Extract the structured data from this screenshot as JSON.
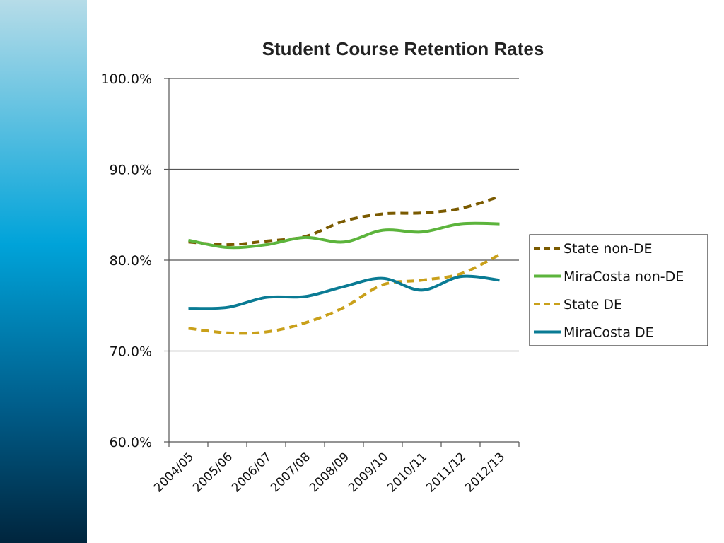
{
  "chart_data": {
    "type": "line",
    "title": "Student Course Retention Rates",
    "xlabel": "",
    "ylabel": "",
    "ylim": [
      60,
      100
    ],
    "y_ticks": [
      "60.0%",
      "70.0%",
      "80.0%",
      "90.0%",
      "100.0%"
    ],
    "y_tick_values": [
      60,
      70,
      80,
      90,
      100
    ],
    "categories": [
      "2004/05",
      "2005/06",
      "2006/07",
      "2007/08",
      "2008/09",
      "2009/10",
      "2010/11",
      "2011/12",
      "2012/13"
    ],
    "grid": true,
    "legend_position": "right",
    "series": [
      {
        "name": "State non-DE",
        "values": [
          82.0,
          81.7,
          82.1,
          82.6,
          84.3,
          85.1,
          85.2,
          85.7,
          87.0
        ],
        "color": "#7a5a00",
        "dashed": true
      },
      {
        "name": "MiraCosta non-DE",
        "values": [
          82.2,
          81.4,
          81.7,
          82.5,
          82.0,
          83.3,
          83.1,
          84.0,
          84.0
        ],
        "color": "#5cb43c",
        "dashed": false
      },
      {
        "name": "State DE",
        "values": [
          72.5,
          72.0,
          72.1,
          73.1,
          74.8,
          77.3,
          77.8,
          78.5,
          80.6
        ],
        "color": "#c9a01a",
        "dashed": true
      },
      {
        "name": "MiraCosta DE",
        "values": [
          74.7,
          74.8,
          75.9,
          76.0,
          77.1,
          78.0,
          76.7,
          78.2,
          77.8
        ],
        "color": "#0a7b94",
        "dashed": false
      }
    ]
  }
}
